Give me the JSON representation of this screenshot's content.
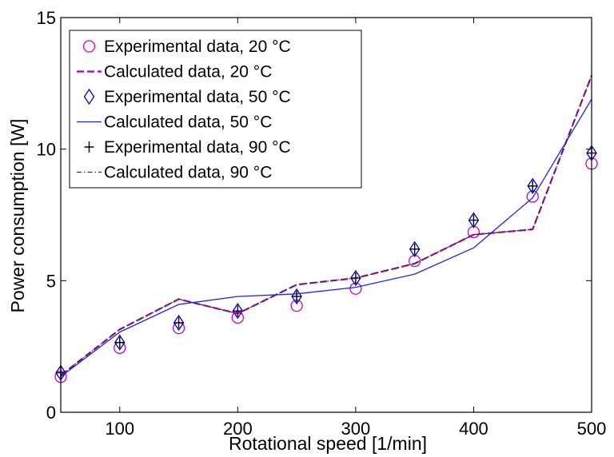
{
  "chart_data": {
    "type": "line",
    "title": "",
    "xlabel": "Rotational speed [1/min]",
    "ylabel": "Power consumption [W]",
    "xlim": [
      50,
      500
    ],
    "ylim": [
      0,
      15
    ],
    "xticks": [
      100,
      200,
      300,
      400,
      500
    ],
    "yticks": [
      0,
      5,
      10,
      15
    ],
    "grid": false,
    "legend_position": "top-left",
    "x": [
      50,
      100,
      150,
      200,
      250,
      300,
      350,
      400,
      450,
      500
    ],
    "series": [
      {
        "name": "Experimental data, 20 °C",
        "style": "markers",
        "marker": "circle",
        "color": "#cc00cc",
        "values": [
          1.35,
          2.45,
          3.2,
          3.6,
          4.05,
          4.7,
          5.75,
          6.85,
          8.2,
          9.45
        ]
      },
      {
        "name": "Calculated data, 20 °C",
        "style": "dashed",
        "color": "#b000b0",
        "values": [
          1.4,
          3.15,
          4.3,
          3.75,
          4.85,
          5.1,
          5.65,
          6.75,
          6.95,
          12.8
        ]
      },
      {
        "name": "Experimental data, 50 °C",
        "style": "markers",
        "marker": "diamond",
        "color": "#0000cc",
        "values": [
          1.5,
          2.65,
          3.4,
          3.85,
          4.4,
          5.1,
          6.2,
          7.3,
          8.6,
          9.85
        ]
      },
      {
        "name": "Calculated data, 50 °C",
        "style": "solid",
        "color": "#2020ff",
        "values": [
          1.35,
          3.05,
          4.1,
          4.4,
          4.5,
          4.75,
          5.25,
          6.25,
          8.15,
          11.9
        ]
      },
      {
        "name": "Experimental data, 90 °C",
        "style": "markers",
        "marker": "plus",
        "color": "#000000",
        "values": [
          1.5,
          2.65,
          3.4,
          3.85,
          4.4,
          5.1,
          6.2,
          7.3,
          8.6,
          9.85
        ]
      },
      {
        "name": "Calculated data, 90 °C",
        "style": "dashdot",
        "color": "#333333",
        "values": [
          1.4,
          3.15,
          4.3,
          3.75,
          4.85,
          5.1,
          5.65,
          6.75,
          6.95,
          12.8
        ]
      }
    ]
  }
}
